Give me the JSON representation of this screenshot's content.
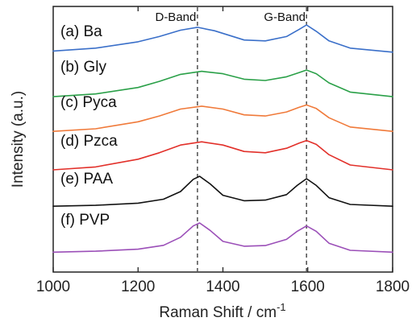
{
  "chart_data": {
    "type": "line",
    "title": "",
    "xlabel": "Raman Shift / cm",
    "xlabel_superscript": "-1",
    "ylabel": "Intensity (a.u.)",
    "xlim": [
      1000,
      1800
    ],
    "xticks": [
      "1000",
      "1200",
      "1400",
      "1600",
      "1800"
    ],
    "y_tick_labels_shown": false,
    "stacked_offset": true,
    "annotations": [
      {
        "text": "D-Band",
        "x": 1340
      },
      {
        "text": "G-Band",
        "x": 1597
      }
    ],
    "reference_lines": [
      {
        "x": 1340,
        "style": "dashed"
      },
      {
        "x": 1597,
        "style": "dashed"
      }
    ],
    "series": [
      {
        "name": "(a) Ba",
        "color": "#3a6fc9",
        "x": [
          1000,
          1100,
          1200,
          1250,
          1300,
          1340,
          1380,
          1450,
          1500,
          1550,
          1580,
          1597,
          1620,
          1650,
          1700,
          1800
        ],
        "y": [
          0.1,
          0.2,
          0.42,
          0.6,
          0.82,
          0.92,
          0.8,
          0.48,
          0.45,
          0.6,
          0.85,
          1.0,
          0.78,
          0.45,
          0.2,
          0.06
        ]
      },
      {
        "name": "(b) Gly",
        "color": "#2aa048",
        "x": [
          1000,
          1100,
          1200,
          1250,
          1300,
          1350,
          1400,
          1450,
          1500,
          1550,
          1580,
          1597,
          1620,
          1650,
          1700,
          1800
        ],
        "y": [
          0.05,
          0.14,
          0.35,
          0.55,
          0.78,
          0.88,
          0.8,
          0.62,
          0.58,
          0.7,
          0.84,
          0.92,
          0.8,
          0.5,
          0.2,
          0.05
        ]
      },
      {
        "name": "(c) Pyca",
        "color": "#f07a3a",
        "x": [
          1000,
          1100,
          1200,
          1250,
          1300,
          1350,
          1400,
          1450,
          1500,
          1550,
          1580,
          1597,
          1620,
          1650,
          1700,
          1800
        ],
        "y": [
          0.05,
          0.14,
          0.38,
          0.58,
          0.82,
          0.92,
          0.82,
          0.62,
          0.58,
          0.72,
          0.88,
          0.96,
          0.84,
          0.52,
          0.2,
          0.05
        ]
      },
      {
        "name": "(d) Pzca",
        "color": "#e2302a",
        "x": [
          1000,
          1100,
          1200,
          1250,
          1300,
          1350,
          1400,
          1450,
          1500,
          1550,
          1580,
          1597,
          1620,
          1650,
          1700,
          1800
        ],
        "y": [
          0.05,
          0.14,
          0.38,
          0.58,
          0.82,
          0.92,
          0.82,
          0.62,
          0.58,
          0.72,
          0.88,
          0.96,
          0.84,
          0.52,
          0.2,
          0.05
        ]
      },
      {
        "name": "(e) PAA",
        "color": "#111111",
        "x": [
          1000,
          1100,
          1200,
          1260,
          1300,
          1330,
          1345,
          1370,
          1400,
          1450,
          1500,
          1550,
          1575,
          1597,
          1620,
          1650,
          1700,
          1800
        ],
        "y": [
          0.02,
          0.05,
          0.12,
          0.25,
          0.5,
          0.9,
          1.0,
          0.75,
          0.38,
          0.2,
          0.22,
          0.4,
          0.7,
          0.92,
          0.7,
          0.3,
          0.08,
          0.02
        ]
      },
      {
        "name": "(f) PVP",
        "color": "#9b4fb8",
        "x": [
          1000,
          1100,
          1200,
          1260,
          1300,
          1330,
          1345,
          1370,
          1400,
          1450,
          1500,
          1550,
          1575,
          1597,
          1620,
          1650,
          1700,
          1800
        ],
        "y": [
          0.02,
          0.05,
          0.12,
          0.25,
          0.52,
          0.9,
          1.0,
          0.75,
          0.38,
          0.22,
          0.24,
          0.45,
          0.72,
          0.9,
          0.72,
          0.32,
          0.08,
          0.02
        ]
      }
    ]
  }
}
